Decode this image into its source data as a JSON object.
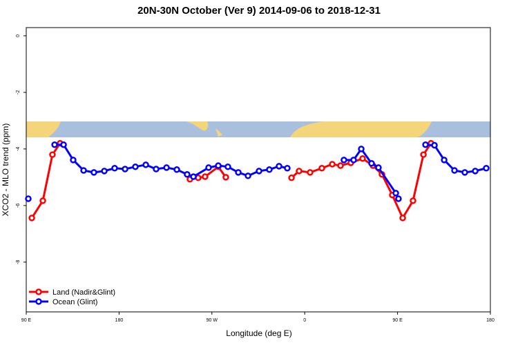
{
  "chart_data": {
    "type": "line",
    "title": "20N-30N October (Ver 9)   2014-09-06 to 2018-12-31",
    "x_label": "Longitude (deg E)",
    "y_label": "XCO2 - MLO trend (ppm)",
    "xlim": [
      90,
      540
    ],
    "ylim": [
      -9.76,
      0.29
    ],
    "xticks": [
      {
        "value": 90,
        "label": "90 E"
      },
      {
        "value": 180,
        "label": "180"
      },
      {
        "value": 270,
        "label": "90 W"
      },
      {
        "value": 360,
        "label": "0"
      },
      {
        "value": 450,
        "label": "90 E"
      },
      {
        "value": 540,
        "label": "180"
      }
    ],
    "yticks": [
      0,
      -2,
      -4,
      -6,
      -8
    ],
    "legend": "bottom-left",
    "series": [
      {
        "name": "Land (Nadir&Glint)",
        "color": "#ff0000",
        "x": [
          95.4,
          106.1,
          115.4,
          122.8,
          null,
          248.7,
          256.7,
          263.4,
          276.2,
          283.5,
          null,
          347.2,
          354.5,
          365.2,
          376.6,
          386.7,
          394.7,
          404.7,
          416.1,
          426.2,
          434.9,
          444.9,
          455.0,
          465.0,
          475.1,
          482.4
        ],
        "values": [
          -6.44,
          -5.83,
          -4.2,
          -3.8,
          null,
          -5.07,
          -5.02,
          -4.98,
          -4.63,
          -5.0,
          null,
          -5.02,
          -4.78,
          -4.83,
          -4.68,
          -4.54,
          -4.59,
          -4.49,
          -4.34,
          -4.59,
          -4.9,
          -5.63,
          -6.44,
          -5.83,
          -4.2,
          -3.8
        ]
      },
      {
        "name": "Ocean (Glint)",
        "color": "#0000ff",
        "x": [
          92.0,
          null,
          117.5,
          126.2,
          135.5,
          145.6,
          155.6,
          165.7,
          175.7,
          185.8,
          195.8,
          205.9,
          215.9,
          226.0,
          236.0,
          246.0,
          252.1,
          266.8,
          276.2,
          285.5,
          295.6,
          305.0,
          315.7,
          325.7,
          335.1,
          343.1,
          null,
          398.0,
          407.4,
          414.8,
          424.8,
          431.5,
          448.3,
          450.9,
          null,
          477.1,
          485.8,
          495.2,
          505.2,
          515.2,
          525.3,
          536.0
        ],
        "values": [
          -5.76,
          null,
          -3.85,
          -3.85,
          -4.39,
          -4.76,
          -4.83,
          -4.78,
          -4.68,
          -4.71,
          -4.63,
          -4.56,
          -4.71,
          -4.66,
          -4.73,
          -4.9,
          -4.98,
          -4.66,
          -4.59,
          -4.63,
          -4.83,
          -4.95,
          -4.78,
          -4.73,
          -4.61,
          -4.68,
          null,
          -4.39,
          -4.39,
          -4.0,
          -4.51,
          -4.66,
          -5.56,
          -5.76,
          null,
          -3.85,
          -3.87,
          -4.39,
          -4.76,
          -4.83,
          -4.78,
          -4.68
        ]
      }
    ]
  }
}
